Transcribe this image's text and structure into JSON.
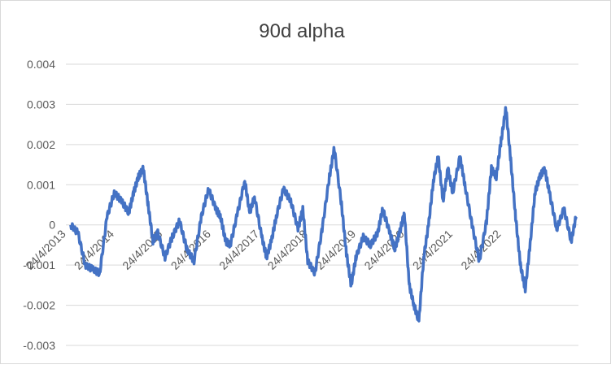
{
  "chart_data": {
    "type": "line",
    "title": "90d alpha",
    "xlabel": "",
    "ylabel": "",
    "ylim": [
      -0.003,
      0.004
    ],
    "grid": true,
    "legend": "none",
    "y_ticks": [
      "0.004",
      "0.003",
      "0.002",
      "0.001",
      "0",
      "-0.001",
      "-0.002",
      "-0.003"
    ],
    "x_ticks": [
      "24/4/2013",
      "24/4/2014",
      "24/4/2015",
      "24/4/2016",
      "24/4/2017",
      "24/4/2018",
      "24/4/2019",
      "24/4/2020",
      "24/4/2021",
      "24/4/2022"
    ],
    "series": [
      {
        "color": "#4472C4",
        "x": [
          2013.4,
          2013.55,
          2013.7,
          2013.85,
          2014.0,
          2014.15,
          2014.3,
          2014.45,
          2014.6,
          2014.7,
          2014.8,
          2014.9,
          2015.0,
          2015.1,
          2015.2,
          2015.35,
          2015.5,
          2015.65,
          2015.8,
          2015.95,
          2016.1,
          2016.25,
          2016.4,
          2016.5,
          2016.6,
          2016.7,
          2016.85,
          2017.0,
          2017.1,
          2017.2,
          2017.35,
          2017.45,
          2017.55,
          2017.65,
          2017.8,
          2017.95,
          2018.1,
          2018.2,
          2018.3,
          2018.45,
          2018.6,
          2018.75,
          2018.85,
          2019.0,
          2019.1,
          2019.2,
          2019.3,
          2019.45,
          2019.6,
          2019.75,
          2019.85,
          2020.0,
          2020.1,
          2020.2,
          2020.3,
          2020.4,
          2020.5,
          2020.6,
          2020.7,
          2020.8,
          2020.9,
          2021.0,
          2021.1,
          2021.2,
          2021.3,
          2021.45,
          2021.55,
          2021.7,
          2021.85,
          2022.0,
          2022.1,
          2022.2,
          2022.3,
          2022.4,
          2022.5,
          2022.6,
          2022.7,
          2022.8,
          2022.9,
          2023.0,
          2023.1,
          2023.2,
          2023.3,
          2023.45,
          2023.6,
          2023.75,
          2023.85
        ],
        "values": [
          0.0,
          -0.0002,
          -0.001,
          -0.0011,
          -0.0012,
          0.0002,
          0.0008,
          0.0006,
          0.0003,
          0.0008,
          0.0012,
          0.0014,
          0.0005,
          -0.0004,
          -0.0002,
          -0.0008,
          -0.0003,
          0.0001,
          -0.0006,
          -0.0009,
          0.0002,
          0.0009,
          0.0004,
          0.0002,
          -0.0004,
          -0.0005,
          0.0003,
          0.0011,
          0.0003,
          0.0007,
          -0.0003,
          -0.0008,
          -0.0004,
          0.0002,
          0.0009,
          0.0006,
          -0.0001,
          0.0004,
          -0.0009,
          -0.0012,
          -0.0001,
          0.0012,
          0.0019,
          0.0005,
          -0.0007,
          -0.0015,
          -0.0008,
          -0.0003,
          -0.0005,
          -0.0002,
          0.0004,
          -0.0002,
          -0.0006,
          -0.0002,
          0.0003,
          -0.0015,
          -0.002,
          -0.0024,
          -0.0008,
          0.0,
          0.0011,
          0.0017,
          0.0006,
          0.0014,
          0.0008,
          0.0017,
          0.001,
          0.0,
          -0.0009,
          0.0001,
          0.0014,
          0.0012,
          0.0021,
          0.0029,
          0.0016,
          0.0002,
          -0.001,
          -0.0016,
          -0.0005,
          0.0008,
          0.0012,
          0.0014,
          0.0008,
          -0.0001,
          0.0004,
          -0.0004,
          0.0002
        ]
      }
    ]
  }
}
